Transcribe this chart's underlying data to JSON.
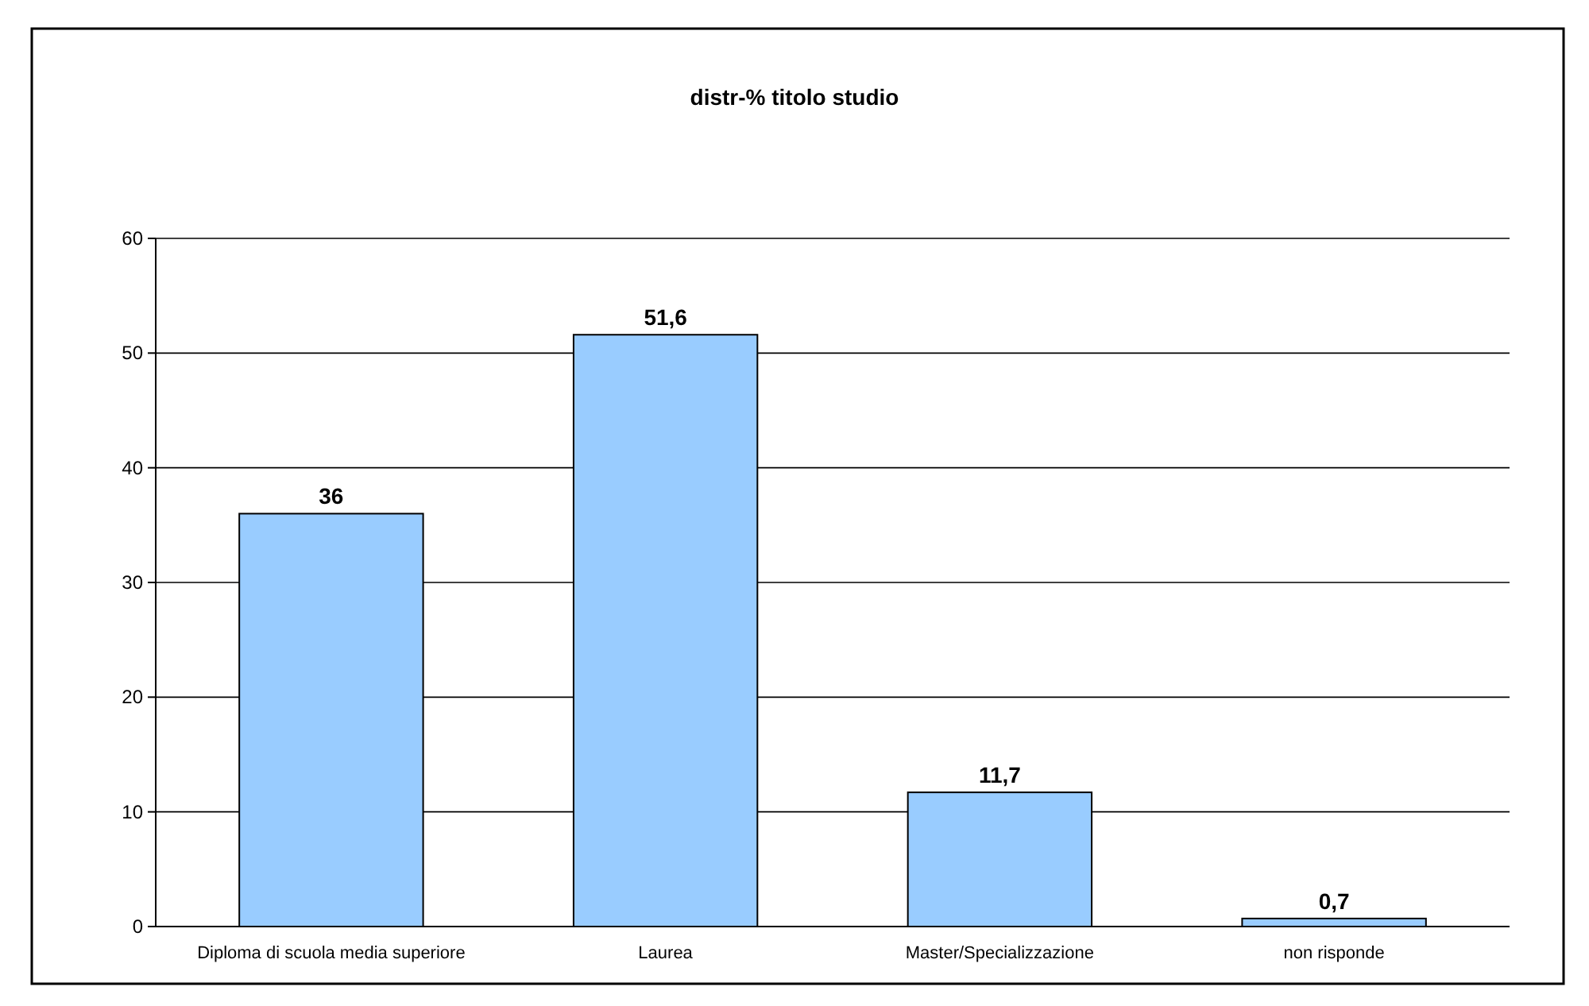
{
  "chart_data": {
    "type": "bar",
    "title": "distr-% titolo studio",
    "categories": [
      "Diploma di scuola media superiore",
      "Laurea",
      "Master/Specializzazione",
      "non risponde"
    ],
    "values": [
      36,
      51.6,
      11.7,
      0.7
    ],
    "color": "#99ccff",
    "ylim": [
      0,
      60
    ],
    "yticks": [
      0,
      10,
      20,
      30,
      40,
      50,
      60
    ],
    "grid": "y",
    "value_labels": [
      "36",
      "51,6",
      "11,7",
      "0,7"
    ]
  }
}
